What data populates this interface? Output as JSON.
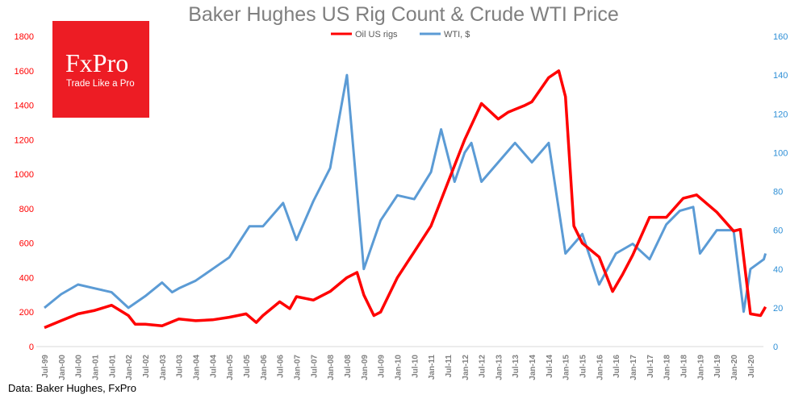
{
  "chart_data": {
    "type": "line",
    "title": "Baker Hughes US Rig Count & Crude WTI Price",
    "source": "Data: Baker Hughes, FxPro",
    "logo": {
      "brand": "FxPro",
      "tagline": "Trade Like a Pro"
    },
    "legend_position": "top-center",
    "y_left": {
      "ylim": [
        0,
        1800
      ],
      "ticks": [
        "0",
        "200",
        "400",
        "600",
        "800",
        "1000",
        "1200",
        "1400",
        "1600",
        "1800"
      ],
      "color": "#ff0000"
    },
    "y_right": {
      "ylim": [
        0,
        160
      ],
      "ticks": [
        "0",
        "20",
        "40",
        "60",
        "80",
        "100",
        "120",
        "140",
        "160"
      ],
      "color": "#2e8fd6"
    },
    "x_ticks": [
      "Jul-99",
      "Jan-00",
      "Jul-00",
      "Jan-01",
      "Jul-01",
      "Jan-02",
      "Jul-02",
      "Jan-03",
      "Jul-03",
      "Jan-04",
      "Jul-04",
      "Jan-05",
      "Jul-05",
      "Jan-06",
      "Jul-06",
      "Jan-07",
      "Jul-07",
      "Jan-08",
      "Jul-08",
      "Jan-09",
      "Jul-09",
      "Jan-10",
      "Jul-10",
      "Jan-11",
      "Jul-11",
      "Jan-12",
      "Jul-12",
      "Jan-13",
      "Jul-13",
      "Jan-14",
      "Jul-14",
      "Jan-15",
      "Jul-15",
      "Jan-16",
      "Jul-16",
      "Jan-17",
      "Jul-17",
      "Jan-18",
      "Jul-18",
      "Jan-19",
      "Jul-19",
      "Jan-20",
      "Jul-20"
    ],
    "series": [
      {
        "name": "Oil US rigs",
        "axis": "left",
        "color": "#ff0000",
        "points": [
          [
            1999.5,
            110
          ],
          [
            2000.0,
            150
          ],
          [
            2000.5,
            190
          ],
          [
            2001.0,
            210
          ],
          [
            2001.5,
            240
          ],
          [
            2002.0,
            180
          ],
          [
            2002.2,
            130
          ],
          [
            2002.5,
            130
          ],
          [
            2003.0,
            120
          ],
          [
            2003.5,
            160
          ],
          [
            2004.0,
            150
          ],
          [
            2004.5,
            155
          ],
          [
            2005.0,
            170
          ],
          [
            2005.5,
            190
          ],
          [
            2005.8,
            140
          ],
          [
            2006.0,
            180
          ],
          [
            2006.5,
            260
          ],
          [
            2006.8,
            220
          ],
          [
            2007.0,
            290
          ],
          [
            2007.5,
            270
          ],
          [
            2008.0,
            320
          ],
          [
            2008.5,
            400
          ],
          [
            2008.8,
            430
          ],
          [
            2009.0,
            300
          ],
          [
            2009.3,
            180
          ],
          [
            2009.5,
            200
          ],
          [
            2010.0,
            400
          ],
          [
            2010.5,
            550
          ],
          [
            2011.0,
            700
          ],
          [
            2011.5,
            950
          ],
          [
            2012.0,
            1200
          ],
          [
            2012.5,
            1410
          ],
          [
            2013.0,
            1320
          ],
          [
            2013.3,
            1360
          ],
          [
            2013.8,
            1400
          ],
          [
            2014.0,
            1420
          ],
          [
            2014.5,
            1560
          ],
          [
            2014.8,
            1600
          ],
          [
            2015.0,
            1450
          ],
          [
            2015.25,
            700
          ],
          [
            2015.5,
            600
          ],
          [
            2016.0,
            520
          ],
          [
            2016.4,
            320
          ],
          [
            2016.7,
            420
          ],
          [
            2017.0,
            530
          ],
          [
            2017.5,
            750
          ],
          [
            2018.0,
            750
          ],
          [
            2018.5,
            860
          ],
          [
            2018.9,
            880
          ],
          [
            2019.5,
            780
          ],
          [
            2020.0,
            670
          ],
          [
            2020.2,
            680
          ],
          [
            2020.5,
            190
          ],
          [
            2020.8,
            180
          ],
          [
            2020.95,
            230
          ]
        ]
      },
      {
        "name": "WTI, $",
        "axis": "right",
        "color": "#5b9bd5",
        "points": [
          [
            1999.5,
            20
          ],
          [
            2000.0,
            27
          ],
          [
            2000.5,
            32
          ],
          [
            2001.0,
            30
          ],
          [
            2001.5,
            28
          ],
          [
            2002.0,
            20
          ],
          [
            2002.5,
            26
          ],
          [
            2003.0,
            33
          ],
          [
            2003.3,
            28
          ],
          [
            2003.5,
            30
          ],
          [
            2004.0,
            34
          ],
          [
            2004.5,
            40
          ],
          [
            2005.0,
            46
          ],
          [
            2005.6,
            62
          ],
          [
            2006.0,
            62
          ],
          [
            2006.6,
            74
          ],
          [
            2007.0,
            55
          ],
          [
            2007.5,
            75
          ],
          [
            2008.0,
            92
          ],
          [
            2008.5,
            140
          ],
          [
            2008.9,
            60
          ],
          [
            2009.0,
            40
          ],
          [
            2009.5,
            65
          ],
          [
            2010.0,
            78
          ],
          [
            2010.5,
            76
          ],
          [
            2011.0,
            90
          ],
          [
            2011.3,
            112
          ],
          [
            2011.7,
            85
          ],
          [
            2012.0,
            100
          ],
          [
            2012.2,
            105
          ],
          [
            2012.5,
            85
          ],
          [
            2013.0,
            95
          ],
          [
            2013.5,
            105
          ],
          [
            2014.0,
            95
          ],
          [
            2014.5,
            105
          ],
          [
            2015.0,
            48
          ],
          [
            2015.5,
            58
          ],
          [
            2016.0,
            32
          ],
          [
            2016.5,
            48
          ],
          [
            2017.0,
            53
          ],
          [
            2017.5,
            45
          ],
          [
            2018.0,
            63
          ],
          [
            2018.4,
            70
          ],
          [
            2018.8,
            72
          ],
          [
            2019.0,
            48
          ],
          [
            2019.5,
            60
          ],
          [
            2020.0,
            60
          ],
          [
            2020.3,
            18
          ],
          [
            2020.5,
            40
          ],
          [
            2020.9,
            45
          ],
          [
            2020.95,
            48
          ]
        ]
      }
    ]
  }
}
